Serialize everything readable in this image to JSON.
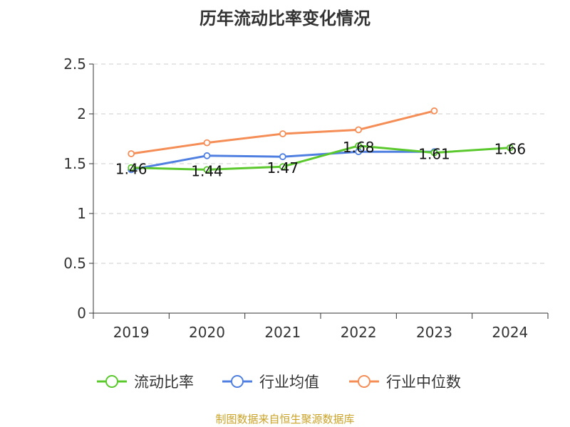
{
  "title": "历年流动比率变化情况",
  "source": "制图数据来自恒生聚源数据库",
  "colors": {
    "流动比率": "#5bc92e",
    "行业均值": "#4f7fe0",
    "行业中位数": "#f58d56",
    "axis": "#333333",
    "grid": "#cccccc"
  },
  "chart_data": {
    "type": "line",
    "title": "历年流动比率变化情况",
    "categories": [
      "2019",
      "2020",
      "2021",
      "2022",
      "2023",
      "2024"
    ],
    "ylim": [
      0,
      2.5
    ],
    "yticks": [
      0,
      0.5,
      1,
      1.5,
      2,
      2.5
    ],
    "ytick_labels": [
      "0",
      "0.5",
      "1",
      "1.5",
      "2",
      "2.5"
    ],
    "grid": true,
    "legend_position": "bottom",
    "series": [
      {
        "name": "流动比率",
        "values": [
          1.46,
          1.44,
          1.47,
          1.68,
          1.61,
          1.66
        ],
        "labels": [
          "1.46",
          "1.44",
          "1.47",
          "1.68",
          "1.61",
          "1.66"
        ]
      },
      {
        "name": "行业均值",
        "values": [
          1.44,
          1.58,
          1.57,
          1.62,
          1.62,
          null
        ]
      },
      {
        "name": "行业中位数",
        "values": [
          1.6,
          1.71,
          1.8,
          1.84,
          2.03,
          null
        ]
      }
    ]
  }
}
